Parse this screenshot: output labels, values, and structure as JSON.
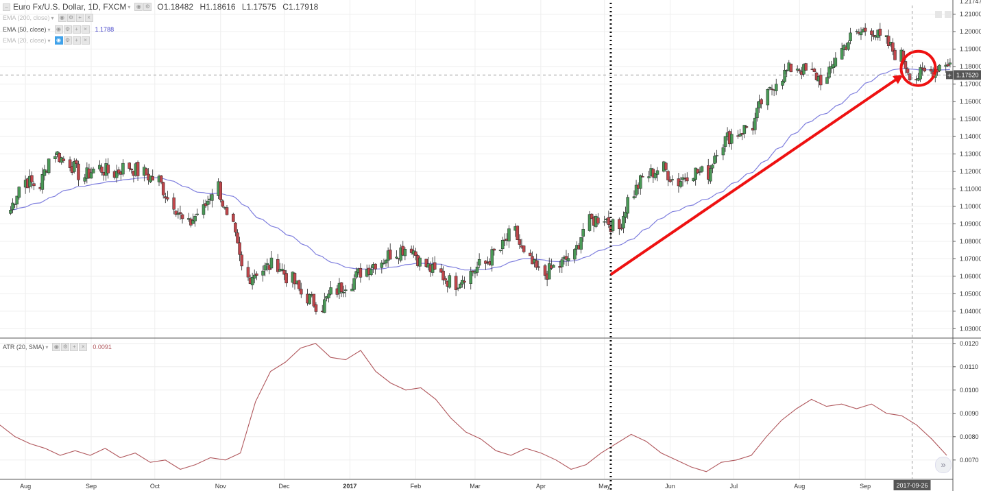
{
  "symbol": {
    "name": "Euro Fx/U.S. Dollar, 1D, FXCM",
    "open": "O1.18482",
    "high": "H1.18616",
    "low": "L1.17575",
    "close": "C1.17918"
  },
  "indicators": {
    "ema200": {
      "label": "EMA (200, close)"
    },
    "ema50": {
      "label": "EMA (50, close)",
      "value": "1.1788",
      "color": "#3f3fc8"
    },
    "ema20": {
      "label": "EMA (20, close)"
    },
    "atr": {
      "label": "ATR (20, SMA)",
      "value": "0.0091",
      "color": "#b0575c"
    }
  },
  "current_price": "1.17520",
  "crosshair_date": "2017-09-26",
  "top_price_partial": "1.21747",
  "colors": {
    "up": "#4a9a57",
    "down": "#c0464b",
    "arrow": "#ee1111",
    "ema": "#7e7ede",
    "atr": "#b0575c"
  },
  "chart_data": [
    {
      "type": "candlestick",
      "title": "Euro Fx/U.S. Dollar, 1D, FXCM",
      "y_ticks": [
        "1.21000",
        "1.20000",
        "1.19000",
        "1.18000",
        "1.17000",
        "1.16000",
        "1.15000",
        "1.14000",
        "1.13000",
        "1.12000",
        "1.11000",
        "1.10000",
        "1.09000",
        "1.08000",
        "1.07000",
        "1.06000",
        "1.05000",
        "1.04000",
        "1.03000"
      ],
      "x_ticks": [
        "Aug",
        "Sep",
        "Oct",
        "Nov",
        "Dec",
        "2017",
        "Feb",
        "Mar",
        "Apr",
        "May",
        "Jun",
        "Jul",
        "Aug",
        "Sep"
      ],
      "ylim": [
        1.025,
        1.215
      ],
      "close_series": {
        "dates": [
          "2016-07-25",
          "2016-08-01",
          "2016-08-08",
          "2016-08-15",
          "2016-08-22",
          "2016-08-29",
          "2016-09-05",
          "2016-09-12",
          "2016-09-19",
          "2016-09-26",
          "2016-10-03",
          "2016-10-10",
          "2016-10-17",
          "2016-10-24",
          "2016-10-31",
          "2016-11-07",
          "2016-11-14",
          "2016-11-21",
          "2016-11-28",
          "2016-12-05",
          "2016-12-12",
          "2016-12-19",
          "2016-12-26",
          "2017-01-02",
          "2017-01-09",
          "2017-01-16",
          "2017-01-23",
          "2017-01-30",
          "2017-02-06",
          "2017-02-13",
          "2017-02-20",
          "2017-02-27",
          "2017-03-06",
          "2017-03-13",
          "2017-03-20",
          "2017-03-27",
          "2017-04-03",
          "2017-04-10",
          "2017-04-17",
          "2017-04-24",
          "2017-05-01",
          "2017-05-08",
          "2017-05-15",
          "2017-05-22",
          "2017-05-29",
          "2017-06-05",
          "2017-06-12",
          "2017-06-19",
          "2017-06-26",
          "2017-07-03",
          "2017-07-10",
          "2017-07-17",
          "2017-07-24",
          "2017-07-31",
          "2017-08-07",
          "2017-08-14",
          "2017-08-21",
          "2017-08-28",
          "2017-09-04",
          "2017-09-11",
          "2017-09-18",
          "2017-09-25",
          "2017-10-02",
          "2017-10-09"
        ],
        "values": [
          1.098,
          1.115,
          1.112,
          1.131,
          1.125,
          1.117,
          1.122,
          1.119,
          1.123,
          1.119,
          1.115,
          1.102,
          1.089,
          1.098,
          1.112,
          1.087,
          1.059,
          1.064,
          1.067,
          1.058,
          1.048,
          1.043,
          1.052,
          1.057,
          1.064,
          1.069,
          1.074,
          1.077,
          1.066,
          1.061,
          1.056,
          1.062,
          1.067,
          1.075,
          1.085,
          1.068,
          1.061,
          1.066,
          1.072,
          1.091,
          1.094,
          1.087,
          1.108,
          1.118,
          1.122,
          1.114,
          1.12,
          1.119,
          1.137,
          1.142,
          1.146,
          1.163,
          1.175,
          1.18,
          1.176,
          1.172,
          1.19,
          1.198,
          1.202,
          1.194,
          1.186,
          1.174,
          1.177,
          1.182
        ]
      },
      "ema50": {
        "last_value": 1.1788
      },
      "annotations": [
        "dotted vertical line at early May 2017",
        "red arrow from ~1.061 (May) to ~1.176 (late Sep)",
        "red circle at 2017-09-26 near 1.176"
      ]
    },
    {
      "type": "line",
      "title": "ATR (20, SMA)",
      "y_ticks": [
        "0.0120",
        "0.0110",
        "0.0100",
        "0.0090",
        "0.0080",
        "0.0070"
      ],
      "ylim": [
        0.0062,
        0.0122
      ],
      "series": [
        {
          "name": "ATR (20, SMA)",
          "values": [
            0.0085,
            0.008,
            0.0077,
            0.0075,
            0.0072,
            0.0074,
            0.0072,
            0.0075,
            0.0071,
            0.0073,
            0.0069,
            0.007,
            0.0066,
            0.0068,
            0.0071,
            0.007,
            0.0073,
            0.0095,
            0.0108,
            0.0112,
            0.0118,
            0.012,
            0.0114,
            0.0113,
            0.0117,
            0.0108,
            0.0103,
            0.01,
            0.0101,
            0.0096,
            0.0088,
            0.0082,
            0.0079,
            0.0074,
            0.0072,
            0.0075,
            0.0073,
            0.007,
            0.0066,
            0.0068,
            0.0073,
            0.0077,
            0.0081,
            0.0078,
            0.0073,
            0.007,
            0.0067,
            0.0065,
            0.0069,
            0.007,
            0.0072,
            0.008,
            0.0087,
            0.0092,
            0.0096,
            0.0093,
            0.0094,
            0.0092,
            0.0094,
            0.009,
            0.0089,
            0.0085,
            0.0079,
            0.0072
          ]
        }
      ]
    }
  ]
}
